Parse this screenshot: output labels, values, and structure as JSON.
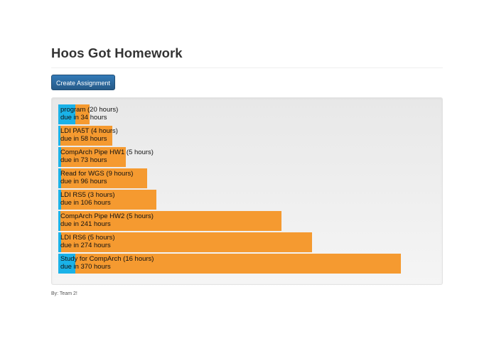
{
  "header": {
    "title": "Hoos Got Homework"
  },
  "toolbar": {
    "create_label": "Create Assignment"
  },
  "colors": {
    "bar_remaining": "#f59a30",
    "bar_progress": "#1ab2e8",
    "button": "#2e6da4"
  },
  "assignments": [
    {
      "name_line": "program (20 hours)",
      "due_line": "due in 34 hours",
      "due_hours": 34,
      "progress_fraction": 0.55
    },
    {
      "name_line": "LDI PA5T (4 hours)",
      "due_line": "due in 58 hours",
      "due_hours": 58,
      "progress_fraction": 0.04
    },
    {
      "name_line": "CompArch Pipe HW1 (5 hours)",
      "due_line": "due in 73 hours",
      "due_hours": 73,
      "progress_fraction": 0.04
    },
    {
      "name_line": "Read for WGS (9 hours)",
      "due_line": "due in 96 hours",
      "due_hours": 96,
      "progress_fraction": 0.03
    },
    {
      "name_line": "LDI RS5 (3 hours)",
      "due_line": "due in 106 hours",
      "due_hours": 106,
      "progress_fraction": 0.03
    },
    {
      "name_line": "CompArch Pipe HW2 (5 hours)",
      "due_line": "due in 241 hours",
      "due_hours": 241,
      "progress_fraction": 0.01
    },
    {
      "name_line": "LDI RS6 (5 hours)",
      "due_line": "due in 274 hours",
      "due_hours": 274,
      "progress_fraction": 0.01
    },
    {
      "name_line": "Study for CompArch (16 hours)",
      "due_line": "due in 370 hours",
      "due_hours": 370,
      "progress_fraction": 0.05
    }
  ],
  "footer": {
    "credit": "By: Team 2!"
  }
}
